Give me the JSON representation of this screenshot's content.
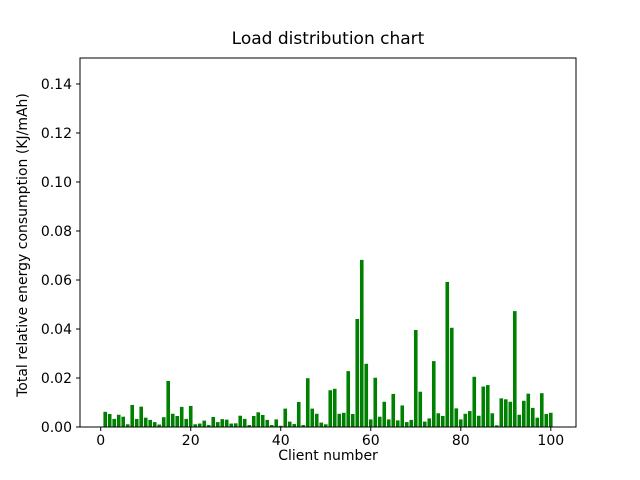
{
  "figure": {
    "title": "Load distribution chart"
  },
  "chart_data": {
    "type": "bar",
    "title": "Load distribution chart",
    "xlabel": "Client number",
    "ylabel": "Total relative energy consumption (KJ/mAh)",
    "bar_color": "#008000",
    "background_color": "#ffffff",
    "axis_color": "#000000",
    "grid": false,
    "legend_position": "none",
    "x_start": 1,
    "categories_note": "client numbers 1..100",
    "values": [
      0.0062,
      0.0053,
      0.0033,
      0.005,
      0.0042,
      0.0011,
      0.009,
      0.0033,
      0.0083,
      0.0038,
      0.0029,
      0.002,
      0.001,
      0.004,
      0.0188,
      0.0054,
      0.0045,
      0.0082,
      0.0033,
      0.0086,
      0.0011,
      0.0014,
      0.0026,
      0.0008,
      0.0041,
      0.002,
      0.0032,
      0.003,
      0.0014,
      0.0015,
      0.0046,
      0.0033,
      0.0008,
      0.0045,
      0.006,
      0.0049,
      0.0029,
      0.0008,
      0.0031,
      0.0005,
      0.0075,
      0.0022,
      0.0012,
      0.0102,
      0.0008,
      0.0199,
      0.0075,
      0.0054,
      0.0018,
      0.0011,
      0.015,
      0.0156,
      0.0054,
      0.0058,
      0.0228,
      0.0053,
      0.0441,
      0.0682,
      0.0258,
      0.0031,
      0.0201,
      0.0042,
      0.0103,
      0.0031,
      0.0135,
      0.0027,
      0.0088,
      0.002,
      0.0029,
      0.0396,
      0.0144,
      0.0022,
      0.0035,
      0.0269,
      0.0056,
      0.0045,
      0.0592,
      0.0405,
      0.0076,
      0.0031,
      0.0054,
      0.0065,
      0.0205,
      0.0046,
      0.0165,
      0.0171,
      0.0056,
      0.0007,
      0.0117,
      0.0113,
      0.0103,
      0.0473,
      0.005,
      0.0107,
      0.0136,
      0.0078,
      0.0038,
      0.0138,
      0.0053,
      0.0058
    ],
    "xticks": [
      0,
      20,
      40,
      60,
      80,
      100
    ],
    "xtick_labels": [
      "0",
      "20",
      "40",
      "60",
      "80",
      "100"
    ],
    "yticks": [
      0.0,
      0.02,
      0.04,
      0.06,
      0.08,
      0.1,
      0.12,
      0.14
    ],
    "ytick_labels": [
      "0.00",
      "0.02",
      "0.04",
      "0.06",
      "0.08",
      "0.10",
      "0.12",
      "0.14"
    ],
    "xlim": [
      -4.6,
      105.6
    ],
    "ylim": [
      0,
      0.1506
    ]
  }
}
